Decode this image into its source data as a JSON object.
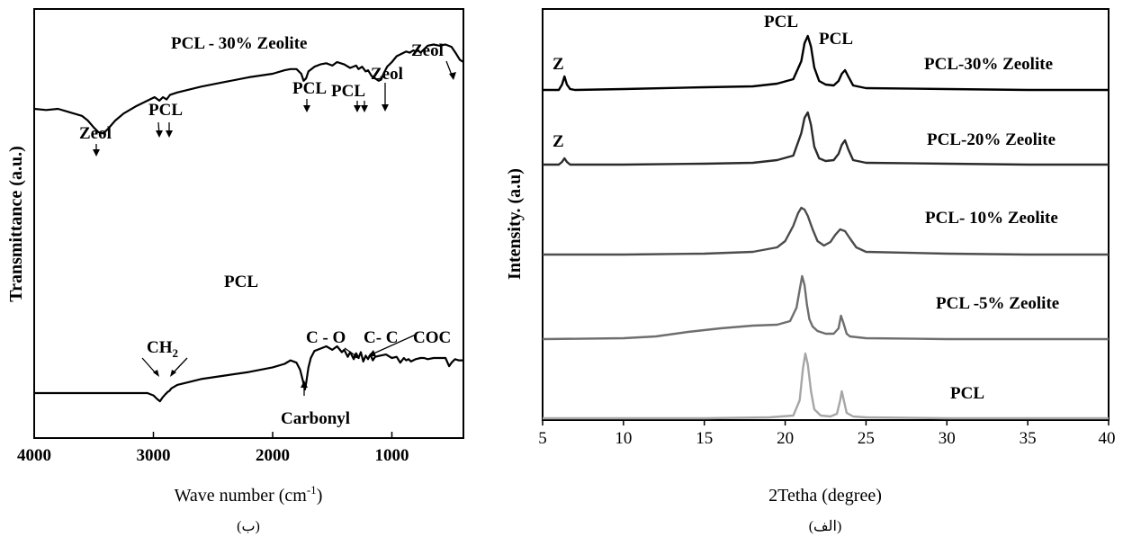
{
  "chart_data": [
    {
      "type": "line",
      "panel": "ftir",
      "xlabel": "Wave number (cm",
      "xlabel_sup": "-1",
      "xlabel_end": ")",
      "ylabel": "Transmittance (a.u.)",
      "caption": "(ب)",
      "xlim": [
        4000,
        400
      ],
      "x_reversed": true,
      "grid": false,
      "xticks": [
        "4000",
        "3000",
        "2000",
        "1000"
      ],
      "series": [
        {
          "name": "PCL - 30% Zeolite",
          "color": "#000000",
          "x": [
            4000,
            3900,
            3800,
            3700,
            3600,
            3550,
            3500,
            3460,
            3420,
            3380,
            3320,
            3250,
            3150,
            3050,
            2990,
            2950,
            2920,
            2890,
            2860,
            2800,
            2600,
            2400,
            2200,
            2000,
            1900,
            1850,
            1800,
            1760,
            1740,
            1720,
            1700,
            1650,
            1600,
            1550,
            1500,
            1460,
            1400,
            1350,
            1300,
            1280,
            1250,
            1220,
            1200,
            1170,
            1140,
            1110,
            1090,
            1070,
            1040,
            1000,
            960,
            920,
            880,
            850,
            820,
            800,
            780,
            760,
            740,
            720,
            700,
            650,
            600,
            550,
            500,
            460,
            430,
            400
          ],
          "y": [
            0.5,
            0.49,
            0.5,
            0.47,
            0.44,
            0.4,
            0.34,
            0.3,
            0.29,
            0.33,
            0.4,
            0.46,
            0.52,
            0.57,
            0.6,
            0.57,
            0.6,
            0.58,
            0.62,
            0.64,
            0.69,
            0.73,
            0.77,
            0.8,
            0.83,
            0.84,
            0.84,
            0.8,
            0.74,
            0.76,
            0.82,
            0.86,
            0.88,
            0.89,
            0.87,
            0.9,
            0.88,
            0.85,
            0.87,
            0.84,
            0.86,
            0.82,
            0.83,
            0.78,
            0.76,
            0.74,
            0.75,
            0.8,
            0.86,
            0.9,
            0.95,
            0.97,
            0.99,
            0.98,
            1.0,
            0.99,
            1.0,
            0.98,
            1.0,
            1.02,
            1.04,
            1.05,
            1.04,
            1.05,
            1.03,
            0.97,
            0.92,
            0.9
          ]
        },
        {
          "name": "PCL",
          "color": "#000000",
          "x": [
            4000,
            3600,
            3200,
            3050,
            3000,
            2970,
            2945,
            2925,
            2900,
            2880,
            2865,
            2850,
            2800,
            2600,
            2400,
            2200,
            2000,
            1900,
            1850,
            1800,
            1770,
            1745,
            1730,
            1720,
            1700,
            1680,
            1650,
            1600,
            1550,
            1500,
            1460,
            1420,
            1400,
            1370,
            1350,
            1320,
            1300,
            1280,
            1260,
            1240,
            1220,
            1200,
            1180,
            1160,
            1140,
            1100,
            1050,
            1000,
            960,
            930,
            900,
            880,
            860,
            840,
            800,
            760,
            730,
            700,
            650,
            600,
            550,
            520,
            500,
            470,
            440,
            400
          ],
          "y": [
            0.0,
            0.0,
            0.0,
            0.0,
            -0.02,
            -0.05,
            -0.07,
            -0.04,
            -0.01,
            0.01,
            0.02,
            0.04,
            0.07,
            0.12,
            0.15,
            0.18,
            0.22,
            0.25,
            0.28,
            0.26,
            0.2,
            0.1,
            0.03,
            0.08,
            0.22,
            0.3,
            0.36,
            0.38,
            0.4,
            0.37,
            0.4,
            0.35,
            0.37,
            0.31,
            0.35,
            0.29,
            0.34,
            0.3,
            0.35,
            0.27,
            0.32,
            0.29,
            0.33,
            0.28,
            0.31,
            0.32,
            0.33,
            0.3,
            0.31,
            0.26,
            0.3,
            0.28,
            0.29,
            0.27,
            0.29,
            0.3,
            0.3,
            0.29,
            0.3,
            0.3,
            0.3,
            0.23,
            0.26,
            0.29,
            0.28,
            0.28
          ]
        }
      ],
      "annotations": [
        "Zeol",
        "PCL",
        "PCL",
        "PCL",
        "Zeol",
        "Zeol",
        "CH",
        "2",
        "C - O",
        "C- C",
        "COC",
        "Carbonyl"
      ]
    },
    {
      "type": "line",
      "panel": "xrd",
      "xlabel": "2Tetha (degree)",
      "ylabel": "Intensity. (a.u)",
      "caption": "(الف)",
      "xlim": [
        5,
        40
      ],
      "grid": false,
      "xticks": [
        "5",
        "10",
        "15",
        "20",
        "25",
        "30",
        "35",
        "40"
      ],
      "peak_labels": [
        "PCL",
        "PCL",
        "Z",
        "Z"
      ],
      "series": [
        {
          "name": "PCL-30% Zeolite",
          "color": "#000000",
          "x": [
            5.0,
            6.0,
            6.2,
            6.35,
            6.5,
            6.7,
            7.0,
            10.0,
            15.0,
            18.0,
            19.5,
            20.5,
            21.0,
            21.2,
            21.4,
            21.6,
            21.8,
            22.1,
            22.5,
            23.0,
            23.3,
            23.5,
            23.7,
            23.9,
            24.2,
            25.0,
            30.0,
            35.0,
            40.0
          ],
          "y": [
            0.0,
            0.0,
            0.06,
            0.15,
            0.06,
            0.01,
            0.0,
            0.01,
            0.03,
            0.04,
            0.07,
            0.12,
            0.32,
            0.52,
            0.6,
            0.48,
            0.25,
            0.1,
            0.06,
            0.05,
            0.1,
            0.18,
            0.22,
            0.15,
            0.05,
            0.02,
            0.01,
            0.0,
            0.0
          ]
        },
        {
          "name": "PCL-20% Zeolite",
          "color": "#2b2b2b",
          "x": [
            5.0,
            6.0,
            6.2,
            6.35,
            6.5,
            6.7,
            7.0,
            10.0,
            15.0,
            18.0,
            19.5,
            20.5,
            21.0,
            21.2,
            21.4,
            21.6,
            21.8,
            22.1,
            22.5,
            23.0,
            23.3,
            23.5,
            23.7,
            23.9,
            24.2,
            25.0,
            30.0,
            35.0,
            40.0
          ],
          "y": [
            0.0,
            0.0,
            0.03,
            0.07,
            0.03,
            0.0,
            0.0,
            0.0,
            0.01,
            0.02,
            0.05,
            0.1,
            0.35,
            0.52,
            0.58,
            0.44,
            0.2,
            0.07,
            0.04,
            0.05,
            0.12,
            0.22,
            0.27,
            0.17,
            0.05,
            0.02,
            0.01,
            0.0,
            0.0
          ]
        },
        {
          "name": "PCL- 10% Zeolite",
          "color": "#4d4d4d",
          "x": [
            5.0,
            10.0,
            15.0,
            18.0,
            19.5,
            20.0,
            20.5,
            20.8,
            21.0,
            21.2,
            21.4,
            21.7,
            22.0,
            22.4,
            22.8,
            23.1,
            23.4,
            23.7,
            24.0,
            24.4,
            25.0,
            30.0,
            35.0,
            40.0
          ],
          "y": [
            0.0,
            0.0,
            0.01,
            0.03,
            0.08,
            0.15,
            0.32,
            0.46,
            0.52,
            0.5,
            0.43,
            0.28,
            0.15,
            0.1,
            0.14,
            0.22,
            0.28,
            0.26,
            0.18,
            0.08,
            0.03,
            0.01,
            0.0,
            0.0
          ]
        },
        {
          "name": "PCL -5% Zeolite",
          "color": "#6e6e6e",
          "x": [
            5.0,
            10.0,
            12.0,
            14.0,
            16.0,
            18.0,
            19.5,
            20.3,
            20.7,
            20.9,
            21.05,
            21.2,
            21.35,
            21.5,
            21.7,
            22.0,
            22.5,
            23.0,
            23.3,
            23.45,
            23.6,
            23.8,
            24.0,
            25.0,
            30.0,
            35.0,
            40.0
          ],
          "y": [
            0.0,
            0.01,
            0.03,
            0.08,
            0.12,
            0.15,
            0.16,
            0.2,
            0.35,
            0.55,
            0.7,
            0.6,
            0.38,
            0.22,
            0.14,
            0.09,
            0.06,
            0.06,
            0.12,
            0.26,
            0.18,
            0.06,
            0.03,
            0.01,
            0.0,
            0.0,
            0.0
          ]
        },
        {
          "name": "PCL",
          "color": "#a6a6a6",
          "x": [
            5.0,
            10.0,
            15.0,
            19.0,
            20.5,
            20.9,
            21.1,
            21.25,
            21.4,
            21.6,
            21.8,
            22.2,
            22.8,
            23.2,
            23.4,
            23.5,
            23.6,
            23.8,
            24.2,
            25.0,
            30.0,
            35.0,
            40.0
          ],
          "y": [
            0.0,
            0.0,
            0.0,
            0.01,
            0.03,
            0.2,
            0.55,
            0.72,
            0.6,
            0.3,
            0.1,
            0.03,
            0.02,
            0.05,
            0.2,
            0.3,
            0.22,
            0.06,
            0.02,
            0.01,
            0.0,
            0.0,
            0.0
          ]
        }
      ]
    }
  ]
}
